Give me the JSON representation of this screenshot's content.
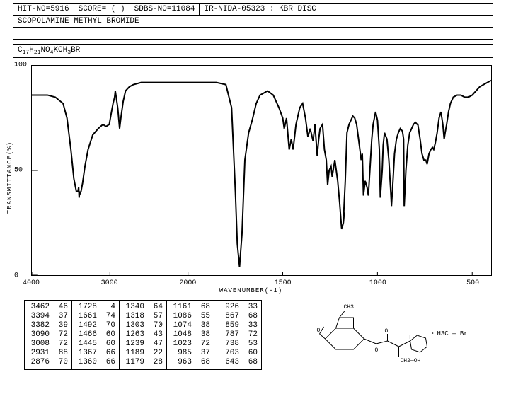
{
  "header": {
    "hit_no": "HIT-NO=5916",
    "score": "SCORE=  ( )",
    "sdbs_no": "SDBS-NO=11084",
    "method": "IR-NIDA-05323 : KBR DISC"
  },
  "compound": "SCOPOLAMINE METHYL BROMIDE",
  "formula_parts": [
    "C",
    "17",
    "H",
    "21",
    "NO",
    "4",
    "KCH",
    "3",
    "BR"
  ],
  "chart": {
    "type": "line",
    "xlabel": "WAVENUMBER(-1)",
    "ylabel": "TRANSMITTANCE(%)",
    "xmin": 400,
    "xmax": 4000,
    "ymin": 0,
    "ymax": 100,
    "xticks": [
      4000,
      3000,
      2000,
      1500,
      1000,
      500
    ],
    "yticks": [
      0,
      50,
      100
    ],
    "line_color": "#000000",
    "background_color": "#ffffff",
    "spectrum": [
      [
        4000,
        86
      ],
      [
        3900,
        86
      ],
      [
        3800,
        86
      ],
      [
        3700,
        85
      ],
      [
        3600,
        82
      ],
      [
        3550,
        75
      ],
      [
        3500,
        60
      ],
      [
        3462,
        46
      ],
      [
        3430,
        40
      ],
      [
        3410,
        40
      ],
      [
        3400,
        42
      ],
      [
        3394,
        37
      ],
      [
        3388,
        40
      ],
      [
        3382,
        39
      ],
      [
        3370,
        40
      ],
      [
        3350,
        44
      ],
      [
        3320,
        52
      ],
      [
        3280,
        60
      ],
      [
        3220,
        67
      ],
      [
        3150,
        70
      ],
      [
        3090,
        72
      ],
      [
        3050,
        71
      ],
      [
        3008,
        72
      ],
      [
        2980,
        78
      ],
      [
        2960,
        82
      ],
      [
        2940,
        85
      ],
      [
        2931,
        88
      ],
      [
        2900,
        80
      ],
      [
        2876,
        70
      ],
      [
        2860,
        75
      ],
      [
        2830,
        83
      ],
      [
        2800,
        88
      ],
      [
        2750,
        90
      ],
      [
        2700,
        91
      ],
      [
        2600,
        92
      ],
      [
        2500,
        92
      ],
      [
        2400,
        92
      ],
      [
        2300,
        92
      ],
      [
        2200,
        92
      ],
      [
        2100,
        92
      ],
      [
        2000,
        92
      ],
      [
        1950,
        92
      ],
      [
        1900,
        92
      ],
      [
        1850,
        92
      ],
      [
        1800,
        91
      ],
      [
        1770,
        80
      ],
      [
        1750,
        40
      ],
      [
        1740,
        15
      ],
      [
        1728,
        4
      ],
      [
        1715,
        20
      ],
      [
        1700,
        55
      ],
      [
        1680,
        68
      ],
      [
        1661,
        74
      ],
      [
        1640,
        82
      ],
      [
        1620,
        86
      ],
      [
        1580,
        88
      ],
      [
        1550,
        86
      ],
      [
        1520,
        80
      ],
      [
        1500,
        75
      ],
      [
        1492,
        70
      ],
      [
        1480,
        75
      ],
      [
        1466,
        60
      ],
      [
        1455,
        65
      ],
      [
        1445,
        60
      ],
      [
        1430,
        72
      ],
      [
        1410,
        80
      ],
      [
        1395,
        82
      ],
      [
        1380,
        75
      ],
      [
        1367,
        66
      ],
      [
        1355,
        70
      ],
      [
        1340,
        64
      ],
      [
        1330,
        72
      ],
      [
        1318,
        57
      ],
      [
        1310,
        65
      ],
      [
        1303,
        70
      ],
      [
        1290,
        72
      ],
      [
        1280,
        60
      ],
      [
        1270,
        55
      ],
      [
        1263,
        43
      ],
      [
        1255,
        50
      ],
      [
        1245,
        52
      ],
      [
        1239,
        47
      ],
      [
        1225,
        55
      ],
      [
        1210,
        45
      ],
      [
        1200,
        35
      ],
      [
        1189,
        22
      ],
      [
        1180,
        25
      ],
      [
        1175,
        30
      ],
      [
        1179,
        28
      ],
      [
        1170,
        45
      ],
      [
        1161,
        68
      ],
      [
        1150,
        72
      ],
      [
        1140,
        74
      ],
      [
        1130,
        76
      ],
      [
        1120,
        75
      ],
      [
        1110,
        72
      ],
      [
        1100,
        65
      ],
      [
        1090,
        58
      ],
      [
        1086,
        55
      ],
      [
        1080,
        58
      ],
      [
        1074,
        38
      ],
      [
        1065,
        45
      ],
      [
        1055,
        42
      ],
      [
        1048,
        38
      ],
      [
        1040,
        50
      ],
      [
        1030,
        65
      ],
      [
        1023,
        72
      ],
      [
        1010,
        78
      ],
      [
        1000,
        74
      ],
      [
        990,
        60
      ],
      [
        985,
        37
      ],
      [
        975,
        50
      ],
      [
        970,
        62
      ],
      [
        963,
        68
      ],
      [
        950,
        65
      ],
      [
        940,
        55
      ],
      [
        930,
        40
      ],
      [
        926,
        33
      ],
      [
        918,
        45
      ],
      [
        910,
        58
      ],
      [
        900,
        65
      ],
      [
        890,
        68
      ],
      [
        880,
        70
      ],
      [
        870,
        69
      ],
      [
        867,
        68
      ],
      [
        862,
        65
      ],
      [
        859,
        33
      ],
      [
        850,
        50
      ],
      [
        840,
        62
      ],
      [
        830,
        68
      ],
      [
        820,
        70
      ],
      [
        810,
        72
      ],
      [
        800,
        73
      ],
      [
        790,
        72
      ],
      [
        787,
        72
      ],
      [
        775,
        65
      ],
      [
        765,
        58
      ],
      [
        755,
        55
      ],
      [
        745,
        55
      ],
      [
        738,
        53
      ],
      [
        728,
        58
      ],
      [
        718,
        60
      ],
      [
        710,
        61
      ],
      [
        703,
        60
      ],
      [
        695,
        63
      ],
      [
        685,
        68
      ],
      [
        675,
        75
      ],
      [
        665,
        78
      ],
      [
        655,
        72
      ],
      [
        648,
        65
      ],
      [
        643,
        68
      ],
      [
        635,
        72
      ],
      [
        625,
        78
      ],
      [
        615,
        82
      ],
      [
        600,
        85
      ],
      [
        580,
        86
      ],
      [
        560,
        86
      ],
      [
        540,
        85
      ],
      [
        520,
        85
      ],
      [
        500,
        86
      ],
      [
        480,
        88
      ],
      [
        460,
        90
      ],
      [
        440,
        91
      ],
      [
        420,
        92
      ],
      [
        400,
        93
      ]
    ]
  },
  "peaks": [
    [
      [
        3462,
        46
      ],
      [
        3394,
        37
      ],
      [
        3382,
        39
      ],
      [
        3090,
        72
      ],
      [
        3008,
        72
      ],
      [
        2931,
        88
      ],
      [
        2876,
        70
      ]
    ],
    [
      [
        1728,
        4
      ],
      [
        1661,
        74
      ],
      [
        1492,
        70
      ],
      [
        1466,
        60
      ],
      [
        1445,
        60
      ],
      [
        1367,
        66
      ],
      [
        1360,
        66
      ]
    ],
    [
      [
        1340,
        64
      ],
      [
        1318,
        57
      ],
      [
        1303,
        70
      ],
      [
        1263,
        43
      ],
      [
        1239,
        47
      ],
      [
        1189,
        22
      ],
      [
        1179,
        28
      ]
    ],
    [
      [
        1161,
        68
      ],
      [
        1086,
        55
      ],
      [
        1074,
        38
      ],
      [
        1048,
        38
      ],
      [
        1023,
        72
      ],
      [
        985,
        37
      ],
      [
        963,
        68
      ]
    ],
    [
      [
        926,
        33
      ],
      [
        867,
        68
      ],
      [
        859,
        33
      ],
      [
        787,
        72
      ],
      [
        738,
        53
      ],
      [
        703,
        60
      ],
      [
        643,
        68
      ]
    ]
  ],
  "salt_label": "H3C — Br"
}
